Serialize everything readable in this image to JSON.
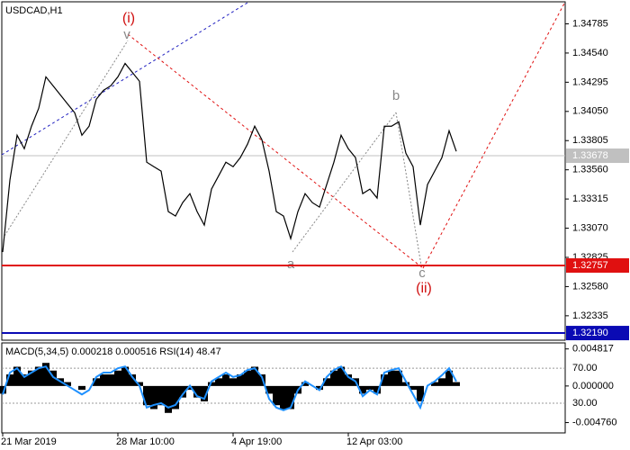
{
  "chart_data": [
    {
      "type": "line",
      "title": "USDCAD,H1",
      "color": "#000000",
      "categories": [
        "21 Mar 2019",
        null,
        null,
        null,
        null,
        null,
        null,
        null,
        null,
        null,
        null,
        null,
        null,
        null,
        null,
        null,
        "28 Mar 10:00",
        null,
        null,
        null,
        null,
        null,
        null,
        null,
        null,
        null,
        null,
        null,
        null,
        null,
        null,
        null,
        "4 Apr 19:00",
        null,
        null,
        null,
        null,
        null,
        null,
        null,
        null,
        null,
        null,
        null,
        null,
        null,
        null,
        null,
        "12 Apr 03:00",
        null,
        null,
        null,
        null,
        null,
        null,
        null,
        null,
        null,
        null,
        null,
        null,
        null,
        null,
        null
      ],
      "values": [
        1.3287,
        1.33473,
        1.3385,
        1.33737,
        1.33926,
        1.34076,
        1.3434,
        1.34265,
        1.34189,
        1.34114,
        1.34039,
        1.3385,
        1.33926,
        1.34152,
        1.34227,
        1.34265,
        1.3434,
        1.34453,
        1.34378,
        1.34303,
        1.33624,
        1.33586,
        1.33549,
        1.33209,
        1.33172,
        1.33285,
        1.3336,
        1.33209,
        1.33096,
        1.33398,
        1.33511,
        1.33624,
        1.33586,
        1.33662,
        1.33775,
        1.33926,
        1.33813,
        1.33549,
        1.33209,
        1.33172,
        1.32983,
        1.33209,
        1.3336,
        1.33285,
        1.33247,
        1.33436,
        1.33624,
        1.3385,
        1.33737,
        1.33662,
        1.3336,
        1.33398,
        1.33323,
        1.33926,
        1.33926,
        1.33963,
        1.33699,
        1.33586,
        1.33096,
        1.33436,
        1.33549,
        1.33662,
        1.33888,
        1.33715
      ],
      "ylim": [
        1.3213,
        1.3497
      ],
      "yticks": [
        1.34785,
        {
          "value": 1.3454,
          "label": "1.34540"
        },
        1.34295,
        {
          "value": 1.3405,
          "label": "1.34050"
        },
        1.33805,
        {
          "value": 1.3356,
          "label": "1.33560"
        },
        1.33315,
        {
          "value": 1.3307,
          "label": "1.33070"
        },
        1.32825,
        {
          "value": 1.3258,
          "label": "1.32580"
        },
        1.32335
      ],
      "levels": [
        {
          "value": 1.33678,
          "color": "#c0c0c0"
        },
        {
          "value": 1.32757,
          "color": "#e01010"
        },
        {
          "value": 1.3219,
          "label": "1.32190",
          "color": "#0a0ab4"
        }
      ],
      "annotations": [
        "(i)",
        "v",
        "b",
        "a",
        "c",
        "(ii)"
      ]
    },
    {
      "type": "bar",
      "title": "MACD(5,34,5) 0.000218 0.000516 RSI(14) 48.47",
      "grid": true,
      "series": [
        {
          "type": "bar",
          "color": "#000000",
          "values": [
            -0.001,
            0.0015,
            0.0025,
            0.0015,
            0.002,
            0.0025,
            0.003,
            0.002,
            0.001,
            0.0005,
            0,
            -0.0005,
            0,
            0.001,
            0.0015,
            0.0015,
            0.002,
            0.0025,
            0.0015,
            0.0005,
            -0.0025,
            -0.003,
            -0.0025,
            -0.0035,
            -0.003,
            -0.0015,
            -0.0005,
            -0.0015,
            -0.002,
            0.0005,
            0.001,
            0.0015,
            0.001,
            0.0015,
            0.002,
            0.0025,
            0.0015,
            -0.001,
            -0.0025,
            -0.003,
            -0.003,
            -0.001,
            0.0005,
            0,
            -0.0005,
            0.001,
            0.002,
            0.0025,
            0.0015,
            0.001,
            -0.001,
            -0.0005,
            -0.001,
            0.0015,
            0.002,
            0.002,
            0.0005,
            -0.0005,
            -0.002,
            0,
            0.0005,
            0.001,
            0.002,
            0.0005
          ]
        },
        {
          "type": "line",
          "axis": "y2",
          "color": "#1e90ff",
          "values": [
            40,
            65,
            70,
            60,
            65,
            70,
            72,
            60,
            55,
            50,
            45,
            40,
            45,
            60,
            65,
            65,
            70,
            72,
            60,
            50,
            25,
            28,
            30,
            25,
            28,
            40,
            50,
            38,
            35,
            55,
            60,
            65,
            60,
            62,
            68,
            70,
            60,
            35,
            25,
            22,
            25,
            45,
            55,
            50,
            45,
            60,
            68,
            72,
            60,
            55,
            38,
            45,
            40,
            65,
            68,
            70,
            55,
            40,
            25,
            50,
            55,
            62,
            70,
            55
          ]
        }
      ],
      "ylim": [
        -0.0061,
        0.0056
      ],
      "yticks": [
        0.004817,
        {
          "value": 0,
          "label": "0.000000"
        },
        {
          "value": -0.00476,
          "label": "-0.004760"
        }
      ],
      "y2lim": [
        -4,
        99
      ],
      "y2ticks": [
        {
          "value": 70,
          "label": "70.00"
        },
        {
          "value": 30,
          "label": "30.00"
        }
      ]
    }
  ]
}
